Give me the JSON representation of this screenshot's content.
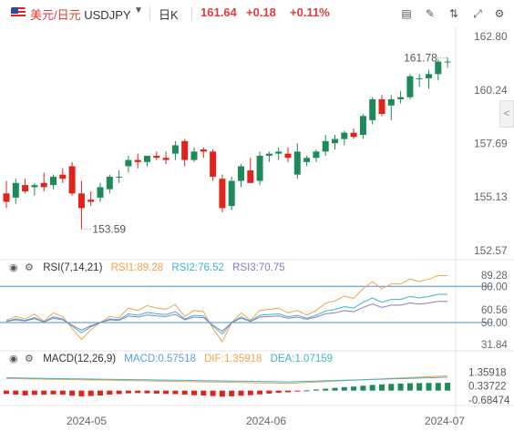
{
  "header": {
    "symbol_cn": "美元/日元",
    "symbol_code": "USDJPY",
    "period": "日K",
    "price": "161.64",
    "change": "+0.18",
    "change_pct": "+0.11%"
  },
  "toolbar": [
    "chart-type-icon",
    "draw-tool-icon",
    "compare-icon",
    "fullscreen-icon",
    "settings-icon"
  ],
  "colors": {
    "up": "#1e8a5a",
    "down": "#e0231b",
    "rsi1": "#f4a24b",
    "rsi2": "#3fb4c8",
    "rsi3": "#8d7bc6",
    "macd": "#5aa0e6",
    "dif": "#f4a24b",
    "dea": "#3fb4c8"
  },
  "price_axis": [
    "162.80",
    "160.24",
    "157.69",
    "155.13",
    "152.57"
  ],
  "annotations": {
    "high": "161.78",
    "low": "153.59"
  },
  "rsi": {
    "title": "RSI(7,14,21)",
    "rsi1": "RSI1:89.28",
    "rsi2": "RSI2:76.52",
    "rsi3": "RSI3:70.75",
    "axis": [
      "80.00",
      "60.56",
      "50.00",
      "31.84"
    ],
    "axis_top": "89.28"
  },
  "macd": {
    "title": "MACD(12,26,9)",
    "macd": "MACD:0.57518",
    "dif": "DIF:1.35918",
    "dea": "DEA:1.07159",
    "axis": [
      "1.35918",
      "0.33722",
      "-0.68474"
    ]
  },
  "x_axis": [
    "2024-05",
    "2024-06",
    "2024-07"
  ],
  "chart_data": {
    "type": "candlestick",
    "ylim": [
      152.57,
      162.8
    ],
    "candles": [
      [
        155.3,
        155.9,
        154.6,
        154.9
      ],
      [
        155.1,
        156.0,
        154.8,
        155.8
      ],
      [
        155.7,
        156.0,
        155.3,
        155.4
      ],
      [
        155.6,
        155.8,
        155.2,
        155.7
      ],
      [
        155.8,
        156.3,
        155.4,
        155.6
      ],
      [
        155.7,
        156.2,
        155.5,
        156.1
      ],
      [
        156.2,
        156.5,
        155.8,
        156.0
      ],
      [
        156.6,
        156.8,
        155.2,
        155.3
      ],
      [
        155.3,
        155.9,
        153.6,
        154.6
      ],
      [
        155.0,
        155.4,
        154.7,
        154.9
      ],
      [
        155.1,
        155.8,
        154.9,
        155.6
      ],
      [
        155.5,
        156.2,
        155.3,
        156.1
      ],
      [
        156.1,
        156.4,
        155.8,
        156.1
      ],
      [
        156.6,
        157.1,
        156.3,
        156.9
      ],
      [
        156.9,
        157.2,
        156.5,
        156.8
      ],
      [
        156.8,
        157.1,
        156.6,
        157.1
      ],
      [
        157.1,
        157.3,
        156.9,
        157.0
      ],
      [
        157.0,
        157.3,
        156.7,
        156.9
      ],
      [
        157.2,
        157.8,
        156.9,
        157.6
      ],
      [
        157.8,
        157.9,
        156.6,
        156.9
      ],
      [
        156.9,
        157.5,
        156.8,
        157.3
      ],
      [
        157.4,
        157.5,
        157.0,
        157.3
      ],
      [
        157.3,
        157.4,
        155.9,
        156.1
      ],
      [
        156.0,
        156.2,
        154.4,
        154.6
      ],
      [
        154.7,
        156.1,
        154.5,
        155.9
      ],
      [
        155.9,
        156.7,
        155.6,
        156.6
      ],
      [
        156.4,
        157.0,
        155.8,
        155.8
      ],
      [
        155.9,
        157.3,
        155.7,
        157.1
      ],
      [
        157.1,
        157.3,
        156.8,
        157.2
      ],
      [
        157.2,
        157.5,
        156.9,
        157.3
      ],
      [
        157.2,
        157.5,
        156.8,
        157.0
      ],
      [
        156.2,
        157.7,
        156.0,
        157.3
      ],
      [
        156.8,
        157.1,
        156.6,
        157.0
      ],
      [
        157.0,
        157.4,
        156.8,
        157.3
      ],
      [
        157.3,
        158.1,
        157.1,
        157.8
      ],
      [
        157.7,
        158.1,
        157.4,
        157.9
      ],
      [
        157.9,
        158.3,
        157.6,
        158.2
      ],
      [
        158.2,
        158.4,
        157.9,
        158.0
      ],
      [
        158.1,
        159.1,
        157.9,
        159.0
      ],
      [
        158.8,
        159.9,
        158.6,
        159.8
      ],
      [
        159.8,
        160.0,
        159.0,
        159.1
      ],
      [
        159.5,
        160.0,
        158.8,
        159.8
      ],
      [
        159.8,
        160.2,
        159.6,
        159.9
      ],
      [
        159.9,
        161.0,
        159.8,
        160.9
      ],
      [
        160.8,
        161.0,
        160.4,
        160.8
      ],
      [
        160.8,
        161.2,
        160.3,
        161.0
      ],
      [
        161.0,
        161.7,
        160.7,
        161.6
      ],
      [
        161.6,
        161.8,
        161.3,
        161.6
      ]
    ]
  }
}
